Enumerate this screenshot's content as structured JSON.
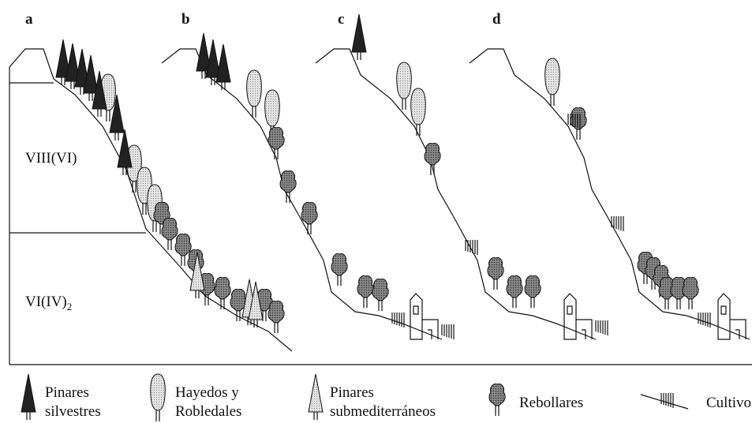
{
  "panels": [
    {
      "label": "a"
    },
    {
      "label": "b"
    },
    {
      "label": "c"
    },
    {
      "label": "d"
    }
  ],
  "zones": [
    {
      "label": "VIII(VI)"
    },
    {
      "label": "VI(IV)",
      "subscript": "2"
    }
  ],
  "legend": [
    {
      "lines": [
        "Pinares",
        "silvestres"
      ]
    },
    {
      "lines": [
        "Hayedos y",
        "Robledales"
      ]
    },
    {
      "lines": [
        "Pinares",
        "submediterráneos"
      ]
    },
    {
      "lines": [
        "Rebollares"
      ]
    },
    {
      "lines": [
        "Cultivos"
      ]
    }
  ]
}
